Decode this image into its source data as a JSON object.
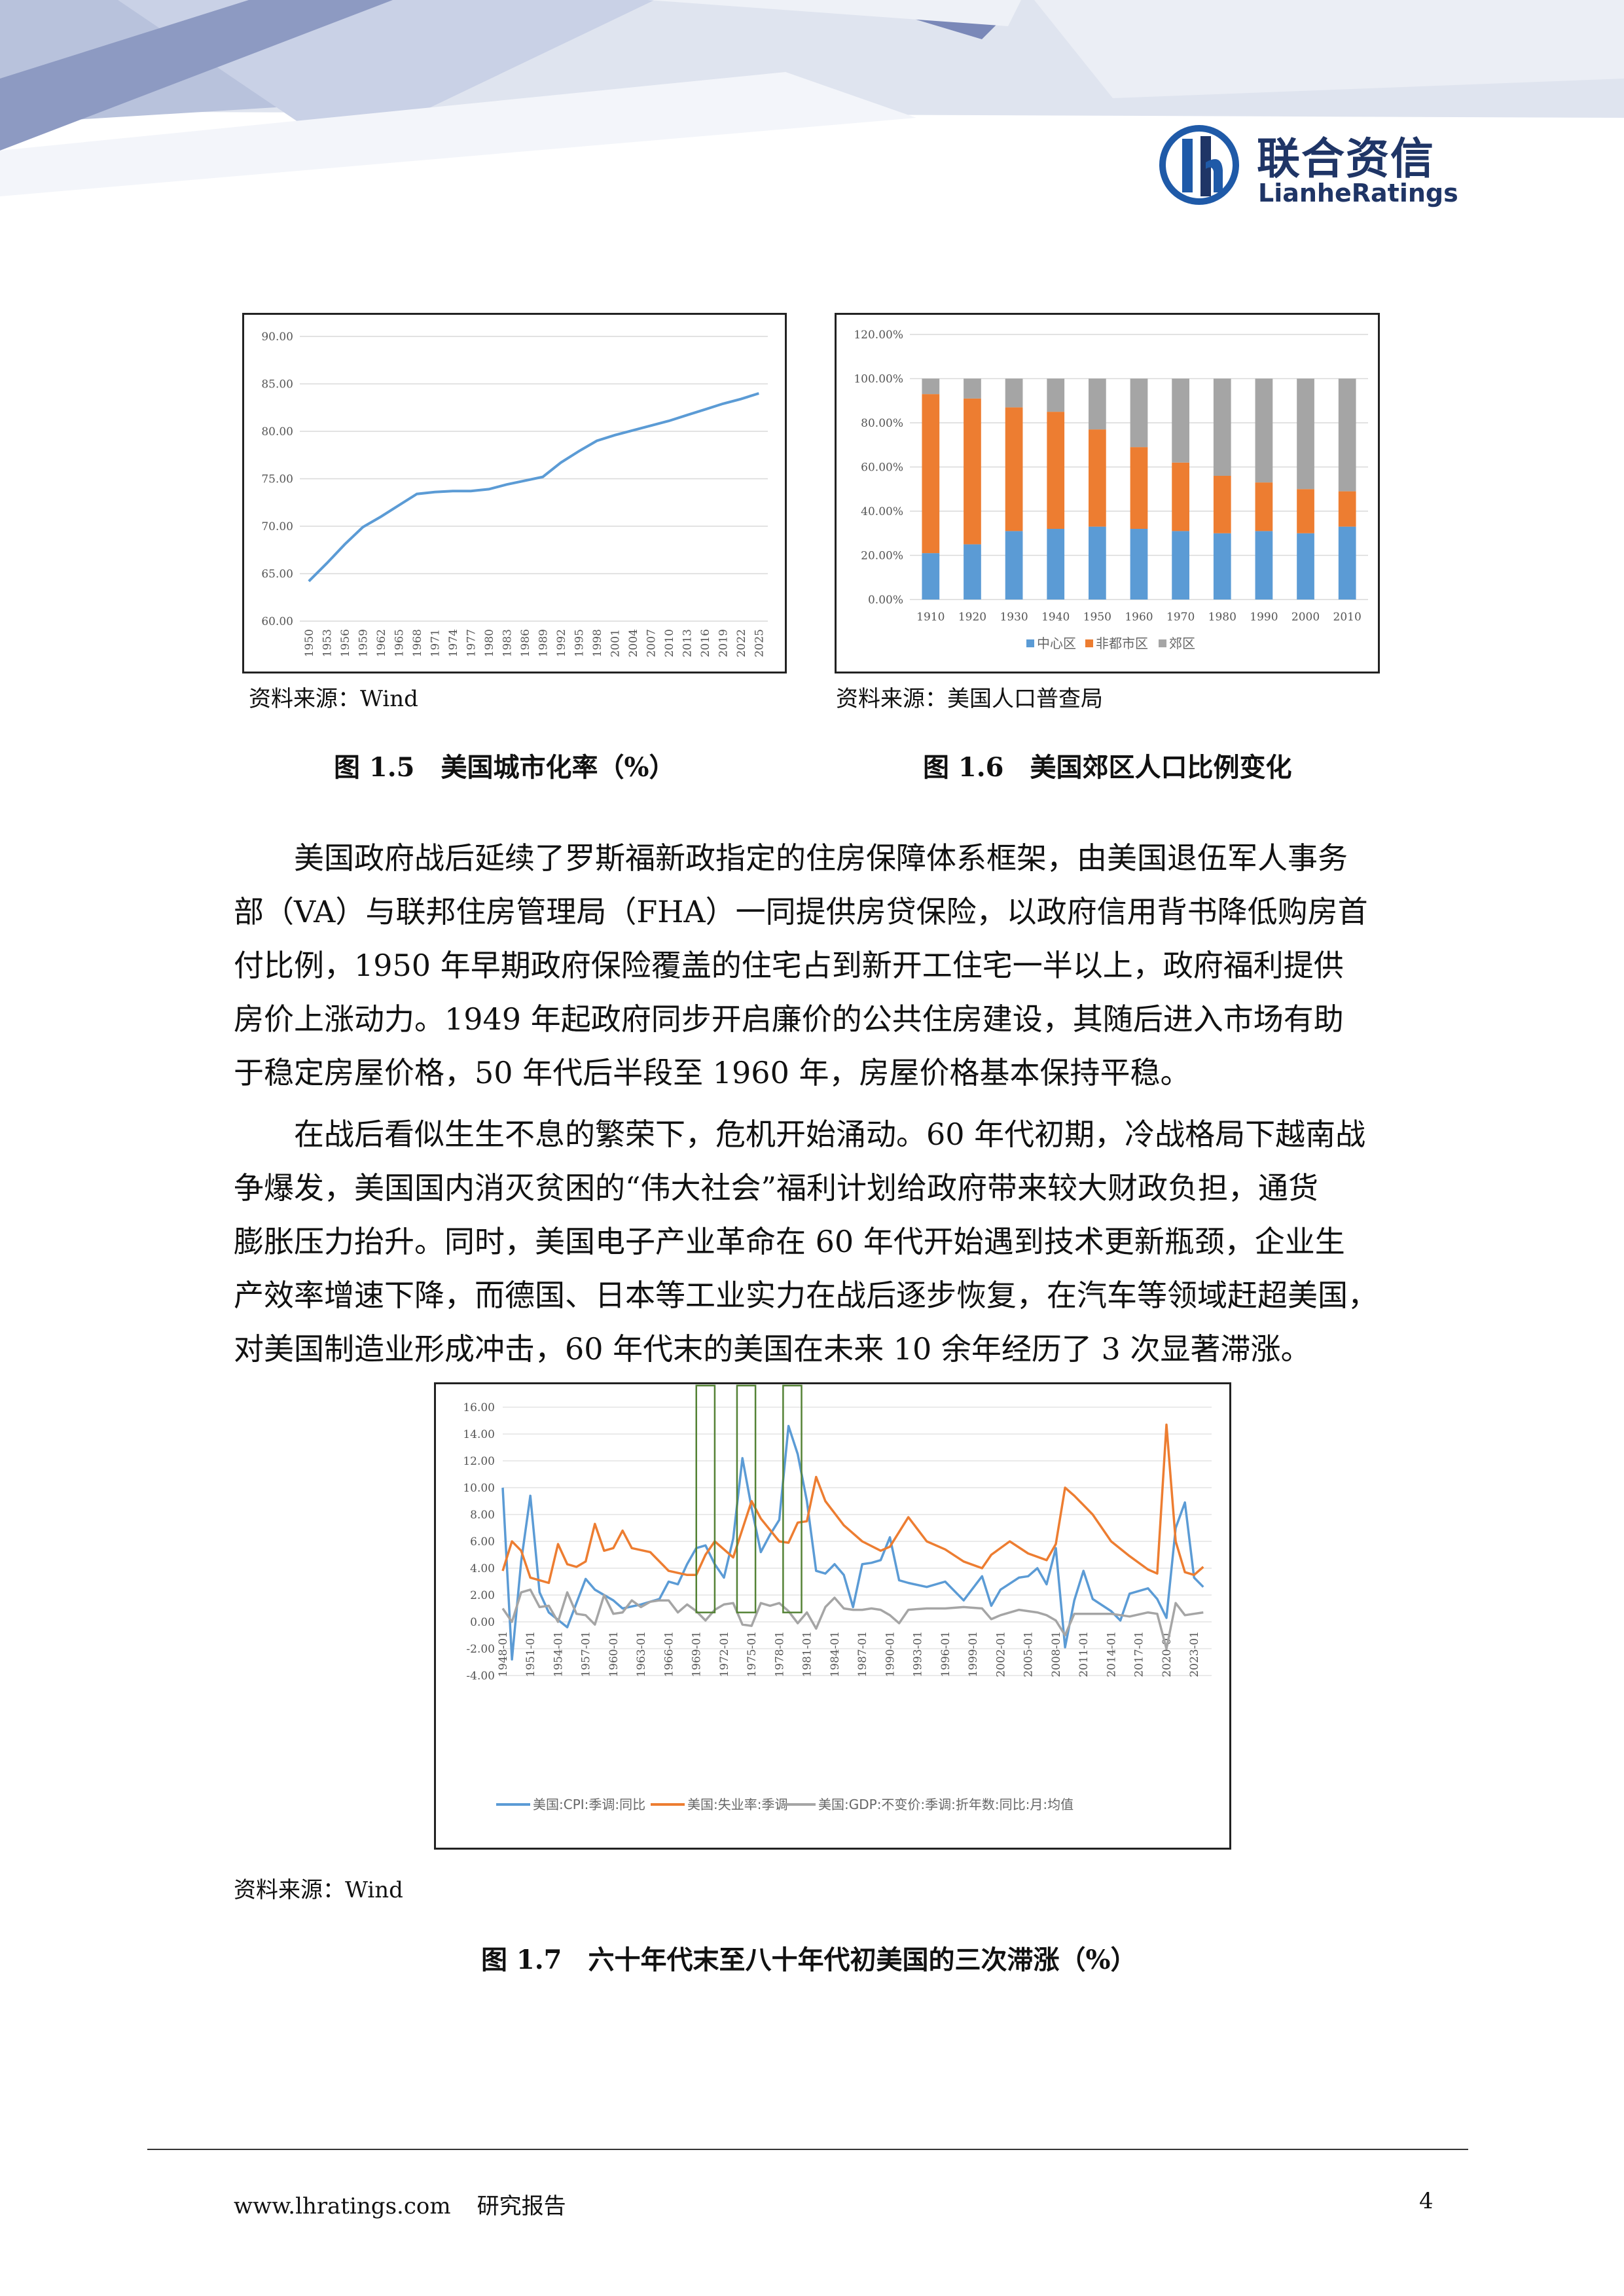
{
  "header": {
    "logo_cn": "联合资信",
    "logo_en": "LianheRatings"
  },
  "figures": {
    "fig15": {
      "source": "资料来源：Wind",
      "caption": "图 1.5　美国城市化率（%）"
    },
    "fig16": {
      "source": "资料来源：美国人口普查局",
      "caption": "图 1.6　美国郊区人口比例变化"
    },
    "fig17": {
      "source": "资料来源：Wind",
      "caption": "图 1.7　六十年代末至八十年代初美国的三次滞涨（%）"
    }
  },
  "body": {
    "para1_lines": [
      "美国政府战后延续了罗斯福新政指定的住房保障体系框架，由美国退伍军人事务",
      "部（VA）与联邦住房管理局（FHA）一同提供房贷保险，以政府信用背书降低购房首",
      "付比例，1950 年早期政府保险覆盖的住宅占到新开工住宅一半以上，政府福利提供",
      "房价上涨动力。1949 年起政府同步开启廉价的公共住房建设，其随后进入市场有助",
      "于稳定房屋价格，50 年代后半段至 1960 年，房屋价格基本保持平稳。"
    ],
    "para2_lines": [
      "在战后看似生生不息的繁荣下，危机开始涌动。60 年代初期，冷战格局下越南战",
      "争爆发，美国国内消灭贫困的“伟大社会”福利计划给政府带来较大财政负担，通货",
      "膨胀压力抬升。同时，美国电子产业革命在 60 年代开始遇到技术更新瓶颈，企业生",
      "产效率增速下降，而德国、日本等工业实力在战后逐步恢复，在汽车等领域赶超美国，",
      "对美国制造业形成冲击，60 年代末的美国在未来 10 余年经历了 3 次显著滞涨。"
    ]
  },
  "footer": {
    "site": "www.lhratings.com",
    "label": "研究报告",
    "page": "4"
  },
  "colors": {
    "blue": "#5b9bd5",
    "orange": "#ed7d31",
    "gray": "#a5a5a5",
    "logo": "#1f3566",
    "highlight": "#548235"
  },
  "chart_data": [
    {
      "id": "urbanization",
      "type": "line",
      "ylim": [
        60,
        90
      ],
      "yticks": [
        "90.00",
        "85.00",
        "80.00",
        "75.00",
        "70.00",
        "65.00",
        "60.00"
      ],
      "x": [
        "1950",
        "1953",
        "1956",
        "1959",
        "1962",
        "1965",
        "1968",
        "1971",
        "1974",
        "1977",
        "1980",
        "1983",
        "1986",
        "1989",
        "1992",
        "1995",
        "1998",
        "2001",
        "2004",
        "2007",
        "2010",
        "2013",
        "2016",
        "2019",
        "2022",
        "2025"
      ],
      "values": [
        64.2,
        66.1,
        68.1,
        69.9,
        71.0,
        72.2,
        73.4,
        73.6,
        73.7,
        73.7,
        73.9,
        74.4,
        74.8,
        75.2,
        76.7,
        77.9,
        79.0,
        79.6,
        80.1,
        80.6,
        81.1,
        81.7,
        82.3,
        82.9,
        83.4,
        84.0
      ]
    },
    {
      "id": "suburban",
      "type": "bar",
      "stacked": true,
      "ylim": [
        0,
        120
      ],
      "yticks": [
        "120.00%",
        "100.00%",
        "80.00%",
        "60.00%",
        "40.00%",
        "20.00%",
        "0.00%"
      ],
      "categories": [
        "1910",
        "1920",
        "1930",
        "1940",
        "1950",
        "1960",
        "1970",
        "1980",
        "1990",
        "2000",
        "2010"
      ],
      "series": [
        {
          "name": "中心区",
          "values": [
            21,
            25,
            31,
            32,
            33,
            32,
            31,
            30,
            31,
            30,
            33
          ]
        },
        {
          "name": "非都市区",
          "values": [
            72,
            66,
            56,
            53,
            44,
            37,
            31,
            26,
            22,
            20,
            16
          ]
        },
        {
          "name": "郊区",
          "values": [
            7,
            9,
            13,
            15,
            23,
            31,
            38,
            44,
            47,
            50,
            51
          ]
        }
      ]
    },
    {
      "id": "stagflation",
      "type": "line",
      "ylim": [
        -4,
        16
      ],
      "yticks": [
        "16.00",
        "14.00",
        "12.00",
        "10.00",
        "8.00",
        "6.00",
        "4.00",
        "2.00",
        "0.00",
        "-2.00",
        "-4.00"
      ],
      "x_ticks": [
        "1948-01",
        "1951-01",
        "1954-01",
        "1957-01",
        "1960-01",
        "1963-01",
        "1966-01",
        "1969-01",
        "1972-01",
        "1975-01",
        "1978-01",
        "1981-01",
        "1984-01",
        "1987-01",
        "1990-01",
        "1993-01",
        "1996-01",
        "1999-01",
        "2002-01",
        "2005-01",
        "2008-01",
        "2011-01",
        "2014-01",
        "2017-01",
        "2020-01",
        "2023-01"
      ],
      "highlight_ranges": [
        [
          "1969-01",
          "1971-01"
        ],
        [
          "1973-06",
          "1975-06"
        ],
        [
          "1978-06",
          "1980-06"
        ]
      ],
      "series": [
        {
          "name": "美国:CPI:季调:同比",
          "x": [
            1948,
            1949,
            1950,
            1951,
            1952,
            1953,
            1955,
            1957,
            1958,
            1960,
            1961,
            1963,
            1965,
            1966,
            1967,
            1968,
            1969,
            1970,
            1971,
            1972,
            1973,
            1974,
            1975,
            1976,
            1977,
            1978,
            1979,
            1980,
            1981,
            1982,
            1983,
            1984,
            1985,
            1986,
            1987,
            1988,
            1989,
            1990,
            1991,
            1992,
            1994,
            1996,
            1998,
            2000,
            2001,
            2002,
            2004,
            2005,
            2006,
            2007,
            2008,
            2009,
            2010,
            2011,
            2012,
            2014,
            2015,
            2016,
            2018,
            2019,
            2020,
            2021,
            2022,
            2023,
            2024
          ],
          "values": [
            10.0,
            -2.8,
            4.5,
            9.4,
            2.2,
            0.7,
            -0.4,
            3.2,
            2.4,
            1.6,
            1.0,
            1.3,
            1.7,
            3.0,
            2.8,
            4.3,
            5.5,
            5.7,
            4.3,
            3.3,
            6.2,
            12.2,
            8.5,
            5.2,
            6.5,
            7.6,
            14.6,
            12.5,
            9.0,
            3.8,
            3.6,
            4.3,
            3.5,
            1.1,
            4.3,
            4.4,
            4.6,
            6.3,
            3.1,
            2.9,
            2.6,
            3.0,
            1.6,
            3.4,
            1.2,
            2.4,
            3.3,
            3.4,
            4.0,
            2.8,
            5.5,
            -1.9,
            1.6,
            3.8,
            1.7,
            0.8,
            0.1,
            2.1,
            2.5,
            1.7,
            0.3,
            7.0,
            8.9,
            3.3,
            2.6
          ]
        },
        {
          "name": "美国:失业率:季调",
          "x": [
            1948,
            1949,
            1950,
            1951,
            1953,
            1954,
            1955,
            1956,
            1957,
            1958,
            1959,
            1960,
            1961,
            1962,
            1964,
            1966,
            1968,
            1969,
            1970,
            1971,
            1973,
            1975,
            1976,
            1978,
            1979,
            1980,
            1981,
            1982,
            1983,
            1985,
            1987,
            1989,
            1990,
            1992,
            1994,
            1996,
            1998,
            2000,
            2001,
            2003,
            2005,
            2007,
            2008,
            2009,
            2010,
            2012,
            2014,
            2016,
            2018,
            2019,
            2020,
            2021,
            2022,
            2023,
            2024
          ],
          "values": [
            3.8,
            6.0,
            5.3,
            3.3,
            2.9,
            5.8,
            4.3,
            4.1,
            4.5,
            7.3,
            5.3,
            5.5,
            6.8,
            5.5,
            5.2,
            3.8,
            3.5,
            3.5,
            5.0,
            6.0,
            4.8,
            9.0,
            7.7,
            6.0,
            5.9,
            7.4,
            7.5,
            10.8,
            9.0,
            7.2,
            6.0,
            5.3,
            5.6,
            7.8,
            6.0,
            5.4,
            4.5,
            4.0,
            5.0,
            6.0,
            5.1,
            4.6,
            5.8,
            10.0,
            9.4,
            8.0,
            6.0,
            4.9,
            3.9,
            3.6,
            14.7,
            6.0,
            3.7,
            3.5,
            4.1
          ]
        },
        {
          "name": "美国:GDP:不变价:季调:折年数:同比:月:均值",
          "x": [
            1948,
            1949,
            1950,
            1951,
            1952,
            1953,
            1954,
            1955,
            1956,
            1957,
            1958,
            1959,
            1960,
            1961,
            1962,
            1963,
            1964,
            1965,
            1966,
            1967,
            1968,
            1969,
            1970,
            1971,
            1972,
            1973,
            1974,
            1975,
            1976,
            1977,
            1978,
            1979,
            1980,
            1981,
            1982,
            1983,
            1984,
            1985,
            1986,
            1987,
            1988,
            1989,
            1990,
            1991,
            1992,
            1994,
            1996,
            1998,
            2000,
            2001,
            2002,
            2004,
            2006,
            2007,
            2008,
            2009,
            2010,
            2012,
            2014,
            2016,
            2018,
            2019,
            2020,
            2021,
            2022,
            2023,
            2024
          ],
          "values": [
            1.0,
            0.0,
            2.2,
            2.4,
            1.1,
            1.2,
            0.0,
            2.2,
            0.6,
            0.5,
            -0.2,
            2.0,
            0.6,
            0.7,
            1.6,
            1.1,
            1.5,
            1.6,
            1.6,
            0.7,
            1.3,
            0.8,
            0.1,
            0.9,
            1.3,
            1.4,
            -0.2,
            -0.3,
            1.4,
            1.2,
            1.4,
            0.8,
            -0.1,
            0.7,
            -0.5,
            1.1,
            1.8,
            1.0,
            0.9,
            0.9,
            1.0,
            0.9,
            0.5,
            -0.1,
            0.9,
            1.0,
            1.0,
            1.1,
            1.0,
            0.2,
            0.5,
            0.9,
            0.7,
            0.5,
            0.1,
            -1.0,
            0.6,
            0.6,
            0.6,
            0.4,
            0.7,
            0.6,
            -2.0,
            1.4,
            0.5,
            0.6,
            0.7
          ]
        }
      ]
    }
  ]
}
